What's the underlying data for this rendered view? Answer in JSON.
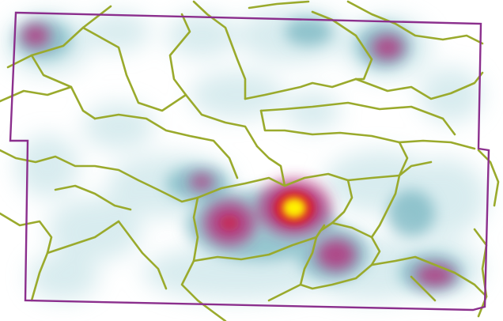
{
  "map": {
    "type": "heatmap-density",
    "has_text": false,
    "colors": {
      "background": "#ffffff",
      "low_density": "#b9dde2",
      "medium_density": "#6fb1bd",
      "high_density": "#b4327d",
      "very_high_density": "#d6182f",
      "peak_density": "#fff200",
      "subdivision_lines": "#9aaa2c",
      "study_area_boundary": "#8b2f8d"
    },
    "density_levels": [
      "low",
      "medium",
      "high",
      "very-high",
      "peak"
    ],
    "hotspots": [
      {
        "name": "hotspot-primary",
        "intensity": 1.0
      },
      {
        "name": "hotspot-secondary-west",
        "intensity": 0.7
      },
      {
        "name": "hotspot-southeast",
        "intensity": 0.65
      },
      {
        "name": "hotspot-northeast",
        "intensity": 0.6
      },
      {
        "name": "hotspot-northwest",
        "intensity": 0.55
      },
      {
        "name": "hotspot-south-east-corner",
        "intensity": 0.5
      }
    ]
  }
}
